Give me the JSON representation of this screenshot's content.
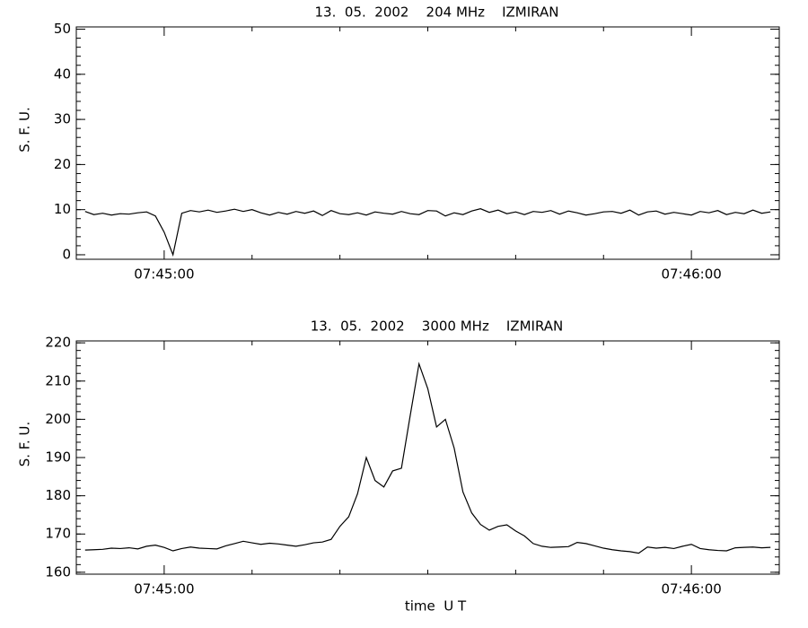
{
  "chart_data": [
    {
      "type": "line",
      "title": "13.  05.  2002    204 MHz    IZMIRAN",
      "ylabel": "S. F. U.",
      "color": "#000000",
      "xlim": [
        "07:44:50",
        "07:46:10"
      ],
      "xticks": [
        "07:45:00",
        "07:46:00"
      ],
      "xminorticks": [
        "07:45:10",
        "07:45:20",
        "07:45:30",
        "07:45:40",
        "07:45:50"
      ],
      "ylim": [
        -1,
        50.5
      ],
      "yticks": [
        0,
        10,
        20,
        30,
        40,
        50
      ],
      "yminorstep": 2,
      "x": [
        "07:44:51",
        "07:44:52",
        "07:44:53",
        "07:44:54",
        "07:44:55",
        "07:44:56",
        "07:44:57",
        "07:44:58",
        "07:44:59",
        "07:45:00",
        "07:45:01",
        "07:45:02",
        "07:45:03",
        "07:45:04",
        "07:45:05",
        "07:45:06",
        "07:45:07",
        "07:45:08",
        "07:45:09",
        "07:45:10",
        "07:45:11",
        "07:45:12",
        "07:45:13",
        "07:45:14",
        "07:45:15",
        "07:45:16",
        "07:45:17",
        "07:45:18",
        "07:45:19",
        "07:45:20",
        "07:45:21",
        "07:45:22",
        "07:45:23",
        "07:45:24",
        "07:45:25",
        "07:45:26",
        "07:45:27",
        "07:45:28",
        "07:45:29",
        "07:45:30",
        "07:45:31",
        "07:45:32",
        "07:45:33",
        "07:45:34",
        "07:45:35",
        "07:45:36",
        "07:45:37",
        "07:45:38",
        "07:45:39",
        "07:45:40",
        "07:45:41",
        "07:45:42",
        "07:45:43",
        "07:45:44",
        "07:45:45",
        "07:45:46",
        "07:45:47",
        "07:45:48",
        "07:45:49",
        "07:45:50",
        "07:45:51",
        "07:45:52",
        "07:45:53",
        "07:45:54",
        "07:45:55",
        "07:45:56",
        "07:45:57",
        "07:45:58",
        "07:45:59",
        "07:46:00",
        "07:46:01",
        "07:46:02",
        "07:46:03",
        "07:46:04",
        "07:46:05",
        "07:46:06",
        "07:46:07",
        "07:46:08",
        "07:46:09"
      ],
      "values": [
        9.6,
        8.9,
        9.2,
        8.8,
        9.1,
        9.0,
        9.3,
        9.5,
        8.6,
        5,
        0,
        9.2,
        9.8,
        9.5,
        9.9,
        9.4,
        9.7,
        10.1,
        9.6,
        10,
        9.3,
        8.8,
        9.4,
        9.0,
        9.6,
        9.2,
        9.7,
        8.7,
        9.8,
        9.1,
        8.9,
        9.3,
        8.8,
        9.5,
        9.2,
        9.0,
        9.6,
        9.1,
        8.9,
        9.8,
        9.7,
        8.6,
        9.3,
        8.9,
        9.7,
        10.2,
        9.4,
        9.9,
        9.1,
        9.5,
        8.9,
        9.6,
        9.4,
        9.8,
        9.0,
        9.7,
        9.3,
        8.8,
        9.1,
        9.5,
        9.6,
        9.2,
        9.9,
        8.8,
        9.5,
        9.7,
        9.0,
        9.4,
        9.1,
        8.8,
        9.6,
        9.3,
        9.8,
        8.9,
        9.4,
        9.1,
        9.9,
        9.2,
        9.5
      ]
    },
    {
      "type": "line",
      "title": "13.  05.  2002    3000 MHz    IZMIRAN",
      "ylabel": "S. F. U.",
      "xlabel": "time  U T",
      "color": "#000000",
      "xlim": [
        "07:44:50",
        "07:46:10"
      ],
      "xticks": [
        "07:45:00",
        "07:46:00"
      ],
      "xminorticks": [
        "07:45:10",
        "07:45:20",
        "07:45:30",
        "07:45:40",
        "07:45:50"
      ],
      "ylim": [
        159.5,
        220.5
      ],
      "yticks": [
        160,
        170,
        180,
        190,
        200,
        210,
        220
      ],
      "yminorstep": 2,
      "x": [
        "07:44:51",
        "07:44:52",
        "07:44:53",
        "07:44:54",
        "07:44:55",
        "07:44:56",
        "07:44:57",
        "07:44:58",
        "07:44:59",
        "07:45:00",
        "07:45:01",
        "07:45:02",
        "07:45:03",
        "07:45:04",
        "07:45:05",
        "07:45:06",
        "07:45:07",
        "07:45:08",
        "07:45:09",
        "07:45:10",
        "07:45:11",
        "07:45:12",
        "07:45:13",
        "07:45:14",
        "07:45:15",
        "07:45:16",
        "07:45:17",
        "07:45:18",
        "07:45:19",
        "07:45:20",
        "07:45:21",
        "07:45:22",
        "07:45:23",
        "07:45:24",
        "07:45:25",
        "07:45:26",
        "07:45:27",
        "07:45:28",
        "07:45:29",
        "07:45:30",
        "07:45:31",
        "07:45:32",
        "07:45:33",
        "07:45:34",
        "07:45:35",
        "07:45:36",
        "07:45:37",
        "07:45:38",
        "07:45:39",
        "07:45:40",
        "07:45:41",
        "07:45:42",
        "07:45:43",
        "07:45:44",
        "07:45:45",
        "07:45:46",
        "07:45:47",
        "07:45:48",
        "07:45:49",
        "07:45:50",
        "07:45:51",
        "07:45:52",
        "07:45:53",
        "07:45:54",
        "07:45:55",
        "07:45:56",
        "07:45:57",
        "07:45:58",
        "07:45:59",
        "07:46:00",
        "07:46:01",
        "07:46:02",
        "07:46:03",
        "07:46:04",
        "07:46:05",
        "07:46:06",
        "07:46:07",
        "07:46:08",
        "07:46:09"
      ],
      "values": [
        165.8,
        165.9,
        166,
        166.3,
        166.2,
        166.4,
        166.1,
        166.8,
        167.1,
        166.5,
        165.6,
        166.2,
        166.6,
        166.3,
        166.2,
        166.1,
        166.9,
        167.5,
        168.1,
        167.7,
        167.3,
        167.6,
        167.4,
        167.1,
        166.8,
        167.2,
        167.7,
        167.9,
        168.6,
        172,
        174.5,
        180.5,
        190,
        184,
        182.3,
        186.5,
        187.2,
        201,
        214.5,
        208,
        198,
        200,
        192.5,
        181,
        175.5,
        172.5,
        171,
        172,
        172.4,
        170.8,
        169.5,
        167.5,
        166.8,
        166.5,
        166.6,
        166.7,
        167.8,
        167.5,
        166.9,
        166.3,
        165.9,
        165.6,
        165.4,
        165,
        166.6,
        166.3,
        166.5,
        166.2,
        166.8,
        167.3,
        166.2,
        165.9,
        165.7,
        165.6,
        166.4,
        166.5,
        166.6,
        166.4,
        166.5
      ]
    }
  ]
}
